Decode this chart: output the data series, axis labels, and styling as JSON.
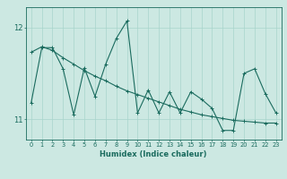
{
  "xlabel": "Humidex (Indice chaleur)",
  "bg_color": "#cce8e2",
  "line_color": "#1a6b5e",
  "grid_color": "#a8d4cc",
  "xlim": [
    -0.5,
    23.5
  ],
  "ylim": [
    10.78,
    12.22
  ],
  "yticks": [
    11,
    12
  ],
  "xticks": [
    0,
    1,
    2,
    3,
    4,
    5,
    6,
    7,
    8,
    9,
    10,
    11,
    12,
    13,
    14,
    15,
    16,
    17,
    18,
    19,
    20,
    21,
    22,
    23
  ],
  "jagged_x": [
    0,
    1,
    2,
    3,
    4,
    5,
    6,
    7,
    8,
    9,
    10,
    11,
    12,
    13,
    14,
    15,
    16,
    17,
    18,
    19,
    20,
    21,
    22,
    23
  ],
  "jagged_y": [
    11.18,
    11.78,
    11.78,
    11.55,
    11.05,
    11.56,
    11.25,
    11.6,
    11.88,
    12.07,
    11.07,
    11.32,
    11.07,
    11.3,
    11.07,
    11.3,
    11.22,
    11.12,
    10.88,
    10.88,
    11.5,
    11.55,
    11.28,
    11.07
  ],
  "trend_x": [
    0,
    1,
    2,
    3,
    4,
    5,
    6,
    7,
    8,
    9,
    10,
    11,
    12,
    13,
    14,
    15,
    16,
    17,
    18,
    19,
    20,
    21,
    22,
    23
  ],
  "trend_y": [
    11.73,
    11.79,
    11.75,
    11.67,
    11.6,
    11.53,
    11.47,
    11.42,
    11.36,
    11.31,
    11.27,
    11.23,
    11.19,
    11.15,
    11.11,
    11.08,
    11.05,
    11.03,
    11.01,
    10.99,
    10.98,
    10.97,
    10.96,
    10.96
  ]
}
